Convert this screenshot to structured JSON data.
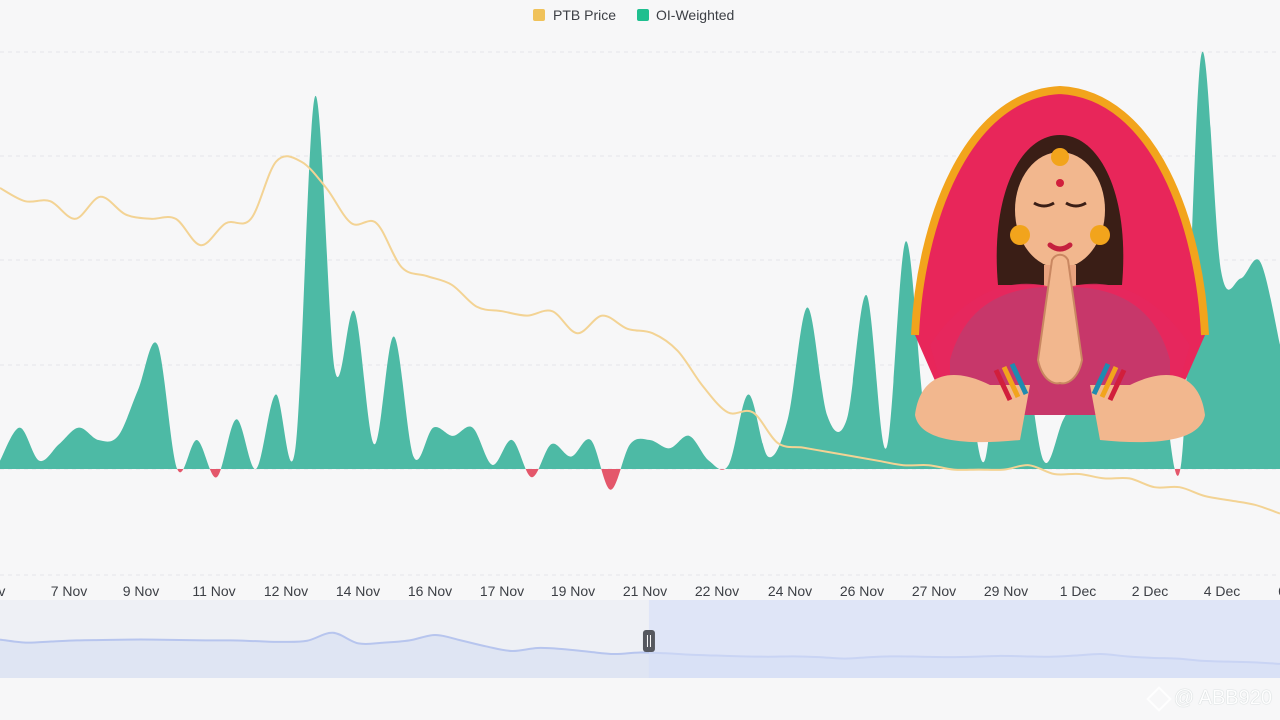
{
  "legend": {
    "items": [
      {
        "label": "PTB Price",
        "color": "#f0c25a"
      },
      {
        "label": "OI-Weighted",
        "color": "#1fbf8f"
      }
    ]
  },
  "watermark": {
    "text": "@ ABB920"
  },
  "colors": {
    "price_line": "#f3d394",
    "oi_positive": "#4dbaa5",
    "oi_negative": "#e4576b",
    "grid": "#e4e6ea",
    "navigator_fill": "#dfe5f3",
    "navigator_line": "#b7c5ee",
    "navigator_selected": "#d6def8"
  },
  "illustration": {
    "icon": "woman-namaste-illustration"
  },
  "chart_data": {
    "type": "area",
    "x_tick_labels": [
      "ov",
      "7 Nov",
      "9 Nov",
      "11 Nov",
      "12 Nov",
      "14 Nov",
      "16 Nov",
      "17 Nov",
      "19 Nov",
      "21 Nov",
      "22 Nov",
      "24 Nov",
      "26 Nov",
      "27 Nov",
      "29 Nov",
      "1 Dec",
      "2 Dec",
      "4 Dec",
      "6"
    ],
    "grid": true,
    "legend_position": "top-center",
    "series": [
      {
        "name": "PTB Price",
        "kind": "line",
        "y_range": [
          0,
          1
        ],
        "values": [
          0.8,
          0.77,
          0.77,
          0.73,
          0.78,
          0.74,
          0.73,
          0.73,
          0.67,
          0.72,
          0.73,
          0.86,
          0.86,
          0.8,
          0.72,
          0.72,
          0.62,
          0.6,
          0.58,
          0.53,
          0.52,
          0.51,
          0.52,
          0.47,
          0.51,
          0.48,
          0.47,
          0.43,
          0.35,
          0.29,
          0.29,
          0.22,
          0.21,
          0.2,
          0.19,
          0.18,
          0.17,
          0.17,
          0.16,
          0.16,
          0.16,
          0.17,
          0.15,
          0.15,
          0.14,
          0.14,
          0.12,
          0.12,
          0.1,
          0.09,
          0.08,
          0.06
        ]
      },
      {
        "name": "OI-Weighted",
        "kind": "area",
        "y_range": [
          -0.1,
          1
        ],
        "values": [
          0.02,
          0.1,
          0.02,
          0.06,
          0.1,
          0.07,
          0.08,
          0.19,
          0.3,
          0.0,
          0.07,
          -0.02,
          0.12,
          0.0,
          0.18,
          0.05,
          0.9,
          0.24,
          0.38,
          0.06,
          0.32,
          0.03,
          0.1,
          0.08,
          0.1,
          0.01,
          0.07,
          -0.02,
          0.06,
          0.03,
          0.07,
          -0.05,
          0.06,
          0.07,
          0.05,
          0.08,
          0.02,
          0.01,
          0.18,
          0.03,
          0.12,
          0.39,
          0.13,
          0.12,
          0.42,
          0.05,
          0.55,
          0.12,
          0.15,
          0.24,
          0.02,
          0.45,
          0.3,
          0.02,
          0.12,
          0.2,
          0.28,
          0.15,
          0.28,
          0.2,
          0.02,
          1.0,
          0.48,
          0.46,
          0.5,
          0.3
        ]
      }
    ],
    "navigator": {
      "values": [
        0.8,
        0.72,
        0.75,
        0.78,
        0.79,
        0.8,
        0.8,
        0.79,
        0.78,
        0.78,
        0.76,
        0.74,
        0.77,
        0.98,
        0.7,
        0.72,
        0.78,
        0.92,
        0.78,
        0.62,
        0.5,
        0.58,
        0.55,
        0.48,
        0.42,
        0.46,
        0.44,
        0.4,
        0.38,
        0.36,
        0.35,
        0.36,
        0.34,
        0.3,
        0.34,
        0.36,
        0.35,
        0.34,
        0.35,
        0.37,
        0.36,
        0.35,
        0.38,
        0.42,
        0.36,
        0.32,
        0.3,
        0.24,
        0.22,
        0.2,
        0.16
      ],
      "selected_range": [
        0.507,
        1.0
      ]
    }
  }
}
